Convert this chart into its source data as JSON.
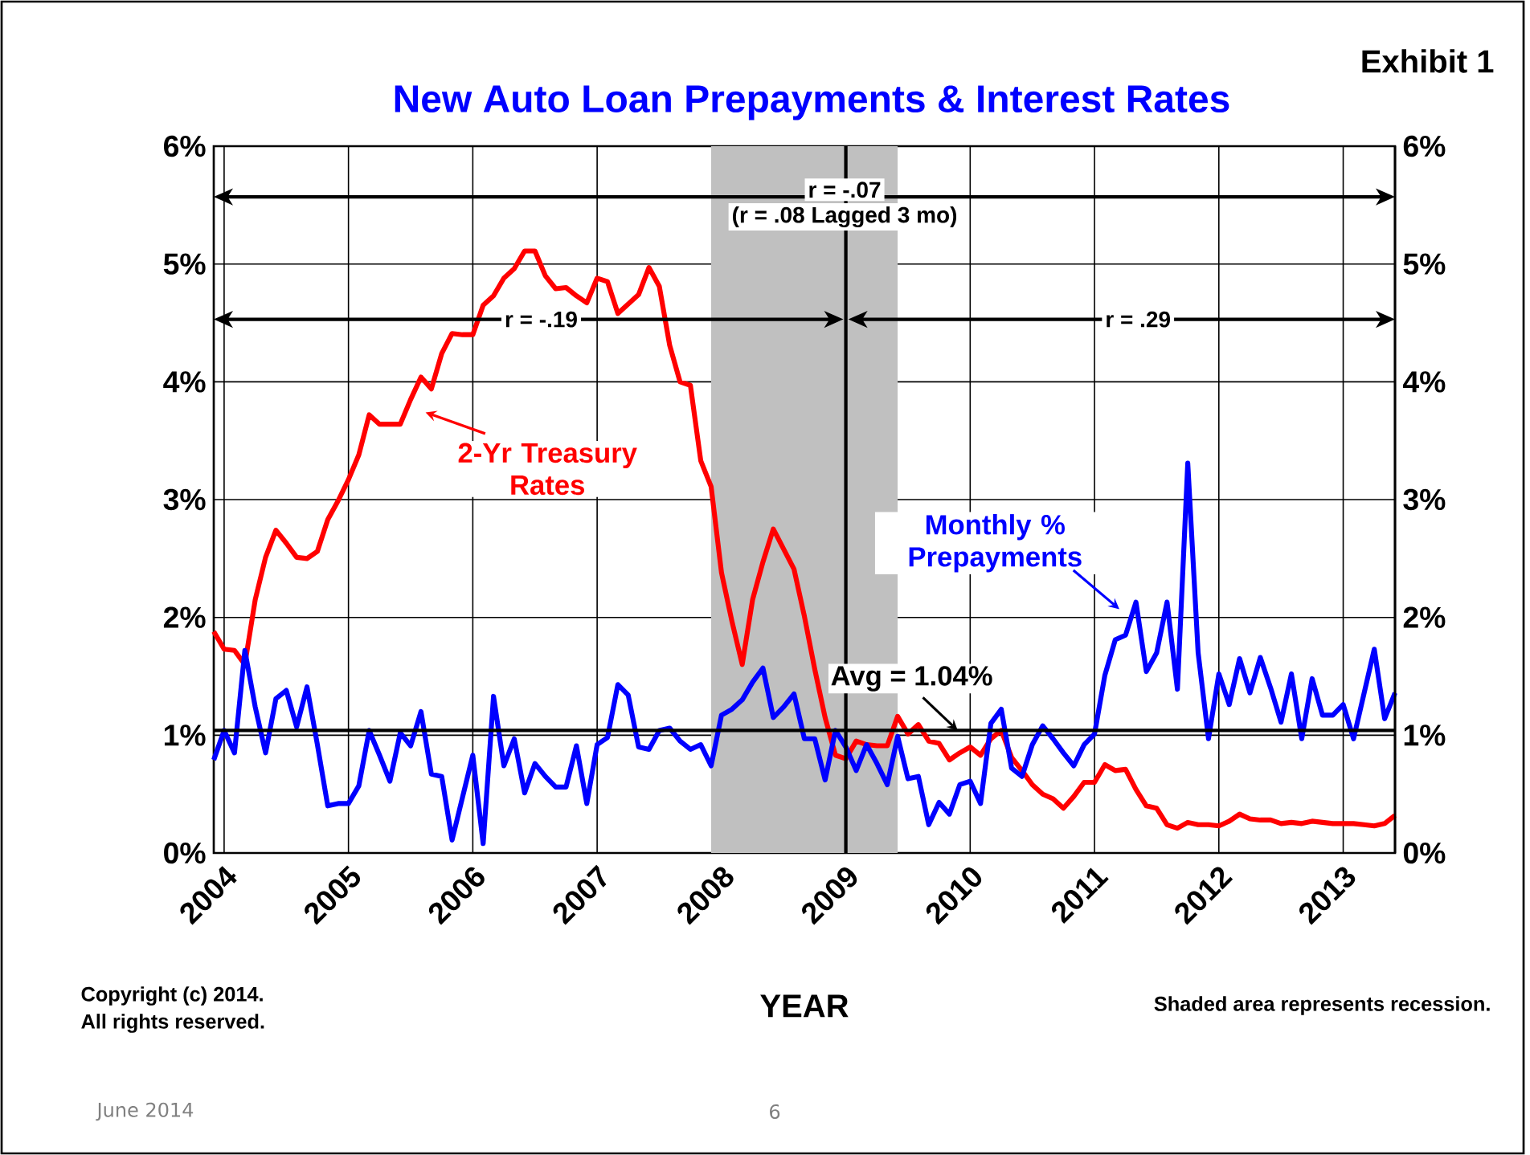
{
  "chart_data": {
    "type": "line",
    "title": "New Auto Loan Prepayments & Interest Rates",
    "xlabel": "YEAR",
    "x": [
      "2003-12",
      "2004-01",
      "2004-02",
      "2004-03",
      "2004-04",
      "2004-05",
      "2004-06",
      "2004-07",
      "2004-08",
      "2004-09",
      "2004-10",
      "2004-11",
      "2004-12",
      "2005-01",
      "2005-02",
      "2005-03",
      "2005-04",
      "2005-05",
      "2005-06",
      "2005-07",
      "2005-08",
      "2005-09",
      "2005-10",
      "2005-11",
      "2005-12",
      "2006-01",
      "2006-02",
      "2006-03",
      "2006-04",
      "2006-05",
      "2006-06",
      "2006-07",
      "2006-08",
      "2006-09",
      "2006-10",
      "2006-11",
      "2006-12",
      "2007-01",
      "2007-02",
      "2007-03",
      "2007-04",
      "2007-05",
      "2007-06",
      "2007-07",
      "2007-08",
      "2007-09",
      "2007-10",
      "2007-11",
      "2007-12",
      "2008-01",
      "2008-02",
      "2008-03",
      "2008-04",
      "2008-05",
      "2008-06",
      "2008-07",
      "2008-08",
      "2008-09",
      "2008-10",
      "2008-11",
      "2008-12",
      "2009-01",
      "2009-02",
      "2009-03",
      "2009-04",
      "2009-05",
      "2009-06",
      "2009-07",
      "2009-08",
      "2009-09",
      "2009-10",
      "2009-11",
      "2009-12",
      "2010-01",
      "2010-02",
      "2010-03",
      "2010-04",
      "2010-05",
      "2010-06",
      "2010-07",
      "2010-08",
      "2010-09",
      "2010-10",
      "2010-11",
      "2010-12",
      "2011-01",
      "2011-02",
      "2011-03",
      "2011-04",
      "2011-05",
      "2011-06",
      "2011-07",
      "2011-08",
      "2011-09",
      "2011-10",
      "2011-11",
      "2011-12",
      "2012-01",
      "2012-02",
      "2012-03",
      "2012-04",
      "2012-05",
      "2012-06",
      "2012-07",
      "2012-08",
      "2012-09",
      "2012-10",
      "2012-11",
      "2012-12",
      "2013-01",
      "2013-02",
      "2013-03",
      "2013-04",
      "2013-05",
      "2013-06"
    ],
    "series": [
      {
        "name": "2-Yr Treasury Rates",
        "color": "#ff0000",
        "values": [
          1.88,
          1.73,
          1.72,
          1.6,
          2.15,
          2.51,
          2.74,
          2.63,
          2.51,
          2.5,
          2.56,
          2.83,
          2.99,
          3.17,
          3.38,
          3.72,
          3.64,
          3.64,
          3.64,
          3.85,
          4.04,
          3.94,
          4.24,
          4.41,
          4.4,
          4.4,
          4.65,
          4.73,
          4.88,
          4.96,
          5.11,
          5.11,
          4.9,
          4.79,
          4.8,
          4.73,
          4.67,
          4.88,
          4.85,
          4.58,
          4.66,
          4.74,
          4.97,
          4.81,
          4.31,
          4.0,
          3.97,
          3.33,
          3.11,
          2.38,
          1.97,
          1.6,
          2.15,
          2.47,
          2.75,
          2.58,
          2.41,
          2.01,
          1.56,
          1.15,
          0.83,
          0.8,
          0.95,
          0.92,
          0.91,
          0.91,
          1.16,
          1.01,
          1.09,
          0.95,
          0.93,
          0.79,
          0.85,
          0.9,
          0.83,
          0.97,
          1.04,
          0.81,
          0.7,
          0.58,
          0.5,
          0.46,
          0.38,
          0.48,
          0.6,
          0.6,
          0.75,
          0.7,
          0.71,
          0.54,
          0.4,
          0.38,
          0.24,
          0.21,
          0.26,
          0.24,
          0.24,
          0.23,
          0.27,
          0.33,
          0.29,
          0.28,
          0.28,
          0.25,
          0.26,
          0.25,
          0.27,
          0.26,
          0.25,
          0.25,
          0.25,
          0.24,
          0.23,
          0.25,
          0.32
        ]
      },
      {
        "name": "Monthly % Prepayments",
        "color": "#0000ff",
        "values": [
          0.79,
          1.04,
          0.85,
          1.72,
          1.24,
          0.85,
          1.31,
          1.38,
          1.07,
          1.41,
          0.92,
          0.4,
          0.42,
          0.42,
          0.57,
          1.04,
          0.83,
          0.61,
          1.02,
          0.91,
          1.2,
          0.67,
          0.65,
          0.11,
          0.47,
          0.83,
          0.08,
          1.33,
          0.74,
          0.97,
          0.51,
          0.76,
          0.65,
          0.56,
          0.56,
          0.91,
          0.42,
          0.92,
          0.98,
          1.43,
          1.34,
          0.9,
          0.88,
          1.04,
          1.06,
          0.95,
          0.88,
          0.92,
          0.74,
          1.17,
          1.22,
          1.3,
          1.45,
          1.57,
          1.15,
          1.24,
          1.35,
          0.97,
          0.97,
          0.62,
          1.04,
          0.9,
          0.7,
          0.92,
          0.76,
          0.58,
          0.99,
          0.63,
          0.65,
          0.24,
          0.43,
          0.33,
          0.58,
          0.61,
          0.42,
          1.1,
          1.22,
          0.72,
          0.65,
          0.92,
          1.08,
          0.97,
          0.85,
          0.74,
          0.92,
          1.01,
          1.51,
          1.81,
          1.85,
          2.13,
          1.54,
          1.7,
          2.13,
          1.39,
          3.31,
          1.7,
          0.97,
          1.52,
          1.26,
          1.65,
          1.36,
          1.66,
          1.4,
          1.11,
          1.52,
          0.97,
          1.48,
          1.17,
          1.17,
          1.26,
          0.97,
          1.35,
          1.73,
          1.14,
          1.36
        ]
      }
    ],
    "xlim": [
      "2003-12",
      "2013-06"
    ],
    "xticks": [
      {
        "value": "2004-01",
        "label": "2004"
      },
      {
        "value": "2005-01",
        "label": "2005"
      },
      {
        "value": "2006-01",
        "label": "2006"
      },
      {
        "value": "2007-01",
        "label": "2007"
      },
      {
        "value": "2008-01",
        "label": "2008"
      },
      {
        "value": "2009-01",
        "label": "2009"
      },
      {
        "value": "2010-01",
        "label": "2010"
      },
      {
        "value": "2011-01",
        "label": "2011"
      },
      {
        "value": "2012-01",
        "label": "2012"
      },
      {
        "value": "2013-01",
        "label": "2013"
      }
    ],
    "ylim": [
      0,
      6
    ],
    "yticks": [
      {
        "value": 0,
        "label": "0%"
      },
      {
        "value": 1,
        "label": "1%"
      },
      {
        "value": 2,
        "label": "2%"
      },
      {
        "value": 3,
        "label": "3%"
      },
      {
        "value": 4,
        "label": "4%"
      },
      {
        "value": 5,
        "label": "5%"
      },
      {
        "value": 6,
        "label": "6%"
      }
    ],
    "y2lim": [
      0,
      6
    ],
    "y2ticks": [
      {
        "value": 0,
        "label": "0%"
      },
      {
        "value": 1,
        "label": "1%"
      },
      {
        "value": 2,
        "label": "2%"
      },
      {
        "value": 3,
        "label": "3%"
      },
      {
        "value": 4,
        "label": "4%"
      },
      {
        "value": 5,
        "label": "5%"
      },
      {
        "value": 6,
        "label": "6%"
      }
    ],
    "ref_lines": [
      {
        "axis": "y",
        "value": 1.04,
        "label": "Avg = 1.04%"
      },
      {
        "axis": "x",
        "value": "2009-01"
      }
    ],
    "bands": [
      {
        "axis": "x",
        "from": "2007-12",
        "to": "2009-06",
        "color": "#c0c0c0"
      }
    ],
    "annotations": [
      "Exhibit 1",
      "r = -.07",
      "(r = .08 Lagged 3 mo)",
      "r = -.19",
      "r = .29",
      "Copyright (c) 2014.",
      "All rights reserved.",
      "Shaded area represents recession.",
      "June 2014",
      "6"
    ],
    "grid": true,
    "line_style": "solid"
  }
}
